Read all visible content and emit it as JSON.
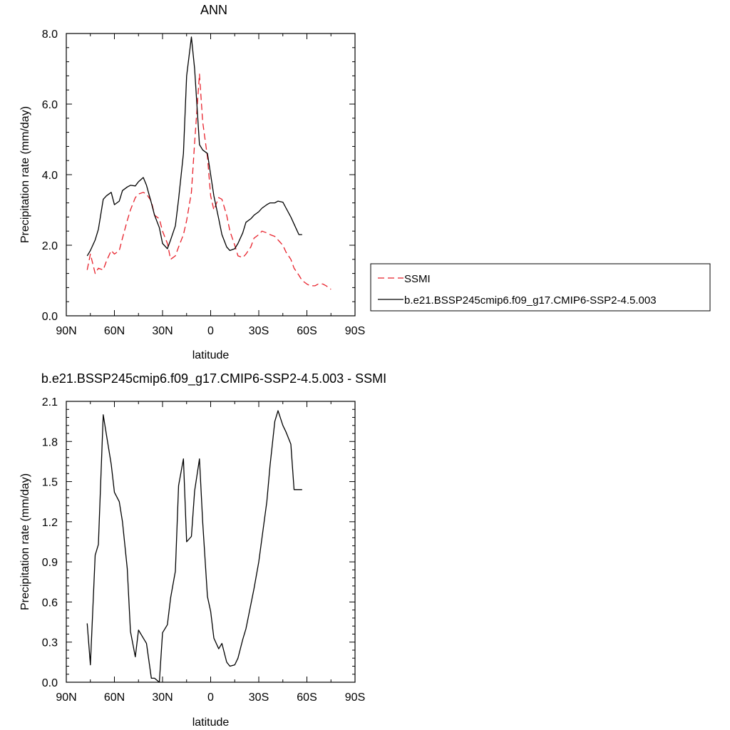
{
  "chart_data": [
    {
      "type": "line",
      "title": "ANN",
      "xlabel": "latitude",
      "ylabel": "Precipitation rate (mm/day)",
      "xlim": [
        -90,
        90
      ],
      "ylim": [
        0,
        8
      ],
      "xticks": [
        {
          "value": -90,
          "label": "90N"
        },
        {
          "value": -60,
          "label": "60N"
        },
        {
          "value": -30,
          "label": "30N"
        },
        {
          "value": 0,
          "label": "0"
        },
        {
          "value": 30,
          "label": "30S"
        },
        {
          "value": 60,
          "label": "60S"
        },
        {
          "value": 90,
          "label": "90S"
        }
      ],
      "yticks": [
        {
          "value": 0,
          "label": "0.0"
        },
        {
          "value": 2,
          "label": "2.0"
        },
        {
          "value": 4,
          "label": "4.0"
        },
        {
          "value": 6,
          "label": "6.0"
        },
        {
          "value": 8,
          "label": "8.0"
        }
      ],
      "legend": {
        "placement": "right"
      },
      "series": [
        {
          "name": "SSMI",
          "color": "#e8202a",
          "dash": "dashed",
          "x": [
            -77,
            -75,
            -72,
            -70,
            -67,
            -65,
            -62,
            -60,
            -57,
            -55,
            -52,
            -50,
            -47,
            -45,
            -42,
            -40,
            -37,
            -35,
            -32,
            -30,
            -27,
            -25,
            -22,
            -20,
            -17,
            -15,
            -12,
            -10,
            -7,
            -5,
            -2,
            0,
            2,
            5,
            7,
            10,
            12,
            15,
            17,
            20,
            22,
            25,
            27,
            30,
            32,
            35,
            37,
            40,
            42,
            45,
            47,
            50,
            52,
            55,
            57,
            60,
            62,
            65,
            67,
            70,
            72,
            75
          ],
          "values": [
            1.3,
            1.75,
            1.2,
            1.35,
            1.3,
            1.55,
            1.85,
            1.75,
            1.85,
            2.2,
            2.7,
            3.0,
            3.35,
            3.45,
            3.5,
            3.45,
            3.25,
            2.85,
            2.75,
            2.4,
            2.05,
            1.6,
            1.7,
            1.95,
            2.3,
            2.7,
            3.5,
            4.9,
            6.85,
            5.5,
            4.5,
            3.4,
            3.0,
            3.35,
            3.3,
            2.85,
            2.4,
            2.0,
            1.7,
            1.65,
            1.75,
            1.95,
            2.2,
            2.3,
            2.4,
            2.35,
            2.3,
            2.25,
            2.15,
            2.0,
            1.8,
            1.6,
            1.35,
            1.15,
            1.0,
            0.9,
            0.85,
            0.85,
            0.9,
            0.9,
            0.85,
            0.75
          ]
        },
        {
          "name": "b.e21.BSSP245cmip6.f09_g17.CMIP6-SSP2-4.5.003",
          "color": "#000000",
          "dash": "solid",
          "x": [
            -77,
            -75,
            -72,
            -70,
            -67,
            -65,
            -62,
            -60,
            -57,
            -55,
            -52,
            -50,
            -47,
            -45,
            -42,
            -40,
            -37,
            -35,
            -32,
            -30,
            -27,
            -25,
            -22,
            -20,
            -17,
            -15,
            -12,
            -10,
            -7,
            -5,
            -2,
            0,
            2,
            5,
            7,
            10,
            12,
            15,
            17,
            20,
            22,
            25,
            27,
            30,
            32,
            35,
            37,
            40,
            42,
            45,
            47,
            50,
            52,
            55,
            57,
            60,
            62,
            65,
            67
          ],
          "values": [
            1.7,
            1.85,
            2.15,
            2.45,
            3.3,
            3.4,
            3.5,
            3.15,
            3.25,
            3.55,
            3.65,
            3.7,
            3.68,
            3.8,
            3.92,
            3.7,
            3.2,
            2.85,
            2.5,
            2.05,
            1.9,
            2.15,
            2.55,
            3.3,
            4.6,
            6.8,
            7.9,
            7.0,
            4.85,
            4.7,
            4.6,
            4.0,
            3.4,
            2.75,
            2.3,
            1.95,
            1.85,
            1.9,
            2.05,
            2.35,
            2.65,
            2.75,
            2.85,
            2.95,
            3.05,
            3.15,
            3.2,
            3.2,
            3.25,
            3.22,
            3.05,
            2.8,
            2.6,
            2.3,
            2.3,
            2.3,
            2.3,
            2.3,
            2.3
          ]
        }
      ]
    },
    {
      "type": "line",
      "title": "b.e21.BSSP245cmip6.f09_g17.CMIP6-SSP2-4.5.003 - SSMI",
      "xlabel": "latitude",
      "ylabel": "Precipitation rate (mm/day)",
      "xlim": [
        -90,
        90
      ],
      "ylim": [
        0,
        2.1
      ],
      "xticks": [
        {
          "value": -90,
          "label": "90N"
        },
        {
          "value": -60,
          "label": "60N"
        },
        {
          "value": -30,
          "label": "30N"
        },
        {
          "value": 0,
          "label": "0"
        },
        {
          "value": 30,
          "label": "30S"
        },
        {
          "value": 60,
          "label": "60S"
        },
        {
          "value": 90,
          "label": "90S"
        }
      ],
      "yticks": [
        {
          "value": 0,
          "label": "0.0"
        },
        {
          "value": 0.3,
          "label": "0.3"
        },
        {
          "value": 0.6,
          "label": "0.6"
        },
        {
          "value": 0.9,
          "label": "0.9"
        },
        {
          "value": 1.2,
          "label": "1.2"
        },
        {
          "value": 1.5,
          "label": "1.5"
        },
        {
          "value": 1.8,
          "label": "1.8"
        },
        {
          "value": 2.1,
          "label": "2.1"
        }
      ],
      "series": [
        {
          "color": "#000000",
          "dash": "solid",
          "x": [
            -77,
            -75,
            -72,
            -70,
            -67,
            -65,
            -62,
            -60,
            -57,
            -55,
            -52,
            -50,
            -47,
            -45,
            -42,
            -40,
            -37,
            -35,
            -32,
            -30,
            -27,
            -25,
            -22,
            -20,
            -17,
            -15,
            -12,
            -10,
            -7,
            -5,
            -2,
            0,
            2,
            5,
            7,
            10,
            12,
            15,
            17,
            20,
            22,
            25,
            27,
            30,
            32,
            35,
            37,
            40,
            42,
            45,
            47,
            50,
            52,
            55,
            57,
            60,
            62,
            65,
            67
          ],
          "values": [
            0.44,
            0.13,
            0.95,
            1.03,
            2.0,
            1.85,
            1.63,
            1.42,
            1.35,
            1.2,
            0.85,
            0.38,
            0.19,
            0.39,
            0.33,
            0.29,
            0.03,
            0.03,
            0.0,
            0.37,
            0.43,
            0.63,
            0.83,
            1.47,
            1.67,
            1.05,
            1.09,
            1.43,
            1.67,
            1.2,
            0.64,
            0.53,
            0.33,
            0.25,
            0.29,
            0.15,
            0.12,
            0.13,
            0.18,
            0.32,
            0.4,
            0.58,
            0.7,
            0.9,
            1.08,
            1.35,
            1.62,
            1.95,
            2.03,
            1.92,
            1.87,
            1.78,
            1.44,
            1.44,
            1.44,
            1.44,
            1.44,
            1.44,
            1.44
          ]
        }
      ]
    }
  ]
}
